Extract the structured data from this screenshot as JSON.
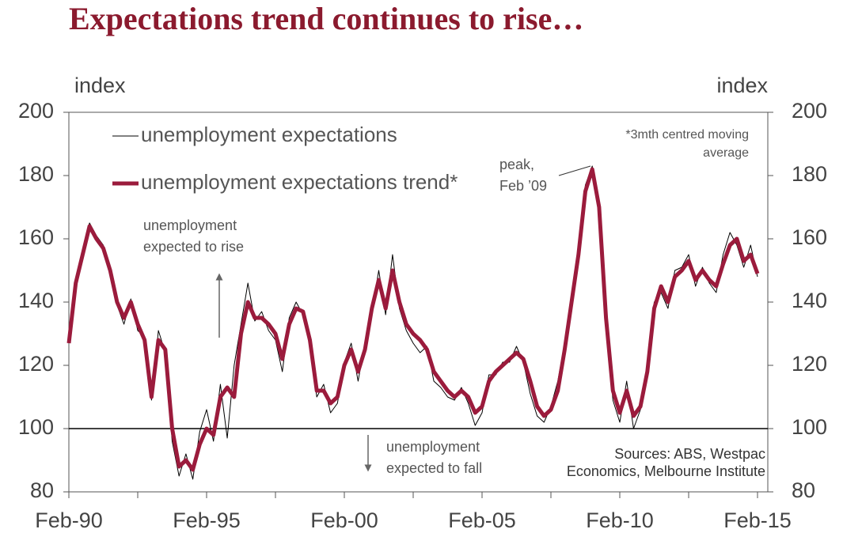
{
  "chart_data": {
    "type": "line",
    "title": "Expectations trend continues to rise…",
    "y_axis_label": "index",
    "y2_axis_label": "index",
    "categories": [
      "Feb-90",
      "May-90",
      "Aug-90",
      "Nov-90",
      "Feb-91",
      "May-91",
      "Aug-91",
      "Nov-91",
      "Feb-92",
      "May-92",
      "Aug-92",
      "Nov-92",
      "Feb-93",
      "May-93",
      "Aug-93",
      "Nov-93",
      "Feb-94",
      "May-94",
      "Aug-94",
      "Nov-94",
      "Feb-95",
      "May-95",
      "Aug-95",
      "Nov-95",
      "Feb-96",
      "May-96",
      "Aug-96",
      "Nov-96",
      "Feb-97",
      "May-97",
      "Aug-97",
      "Nov-97",
      "Feb-98",
      "May-98",
      "Aug-98",
      "Nov-98",
      "Feb-99",
      "May-99",
      "Aug-99",
      "Nov-99",
      "Feb-00",
      "May-00",
      "Aug-00",
      "Nov-00",
      "Feb-01",
      "May-01",
      "Aug-01",
      "Nov-01",
      "Feb-02",
      "May-02",
      "Aug-02",
      "Nov-02",
      "Feb-03",
      "May-03",
      "Aug-03",
      "Nov-03",
      "Feb-04",
      "May-04",
      "Aug-04",
      "Nov-04",
      "Feb-05",
      "May-05",
      "Aug-05",
      "Nov-05",
      "Feb-06",
      "May-06",
      "Aug-06",
      "Nov-06",
      "Feb-07",
      "May-07",
      "Aug-07",
      "Nov-07",
      "Feb-08",
      "May-08",
      "Aug-08",
      "Nov-08",
      "Feb-09",
      "May-09",
      "Aug-09",
      "Nov-09",
      "Feb-10",
      "May-10",
      "Aug-10",
      "Nov-10",
      "Feb-11",
      "May-11",
      "Aug-11",
      "Nov-11",
      "Feb-12",
      "May-12",
      "Aug-12",
      "Nov-12",
      "Feb-13",
      "May-13",
      "Aug-13",
      "Nov-13",
      "Feb-14",
      "May-14",
      "Aug-14",
      "Nov-14",
      "Feb-15"
    ],
    "series": [
      {
        "name": "unemployment expectations",
        "color": "#000000",
        "width": 1,
        "values": [
          127,
          147,
          156,
          165,
          161,
          158,
          151,
          139,
          133,
          141,
          131,
          129,
          109,
          131,
          124,
          96,
          85,
          92,
          84,
          99,
          106,
          96,
          114,
          97,
          120,
          133,
          146,
          134,
          137,
          131,
          128,
          118,
          135,
          140,
          136,
          126,
          110,
          114,
          105,
          108,
          121,
          127,
          115,
          127,
          137,
          150,
          136,
          155,
          138,
          131,
          127,
          124,
          126,
          115,
          113,
          110,
          109,
          113,
          108,
          101,
          105,
          117,
          117,
          121,
          121,
          126,
          121,
          111,
          104,
          102,
          107,
          115,
          127,
          137,
          155,
          177,
          183,
          167,
          133,
          109,
          102,
          115,
          100,
          106,
          120,
          140,
          143,
          138,
          150,
          151,
          155,
          145,
          151,
          146,
          143,
          155,
          162,
          158,
          151,
          158,
          148
        ]
      },
      {
        "name": "unemployment expectations trend*",
        "color": "#9b1b3c",
        "width": 5,
        "values": [
          127,
          146,
          155,
          164,
          160,
          157,
          150,
          140,
          135,
          140,
          133,
          128,
          110,
          128,
          125,
          100,
          88,
          90,
          87,
          95,
          100,
          98,
          110,
          113,
          110,
          130,
          140,
          135,
          135,
          133,
          130,
          122,
          133,
          138,
          137,
          128,
          112,
          112,
          108,
          110,
          120,
          125,
          118,
          125,
          138,
          147,
          138,
          150,
          140,
          133,
          130,
          128,
          125,
          118,
          115,
          112,
          110,
          112,
          110,
          105,
          107,
          115,
          118,
          120,
          122,
          124,
          122,
          115,
          107,
          104,
          106,
          112,
          125,
          140,
          155,
          175,
          182,
          170,
          135,
          112,
          105,
          112,
          104,
          107,
          118,
          138,
          145,
          140,
          148,
          150,
          153,
          147,
          150,
          147,
          145,
          152,
          158,
          160,
          153,
          155,
          149
        ]
      }
    ],
    "ylim": [
      80,
      200
    ],
    "yticks": [
      80,
      100,
      120,
      140,
      160,
      180,
      200
    ],
    "y2lim": [
      80,
      200
    ],
    "y2ticks": [
      80,
      100,
      120,
      140,
      160,
      180,
      200
    ],
    "xticks": [
      "Feb-90",
      "Feb-95",
      "Feb-00",
      "Feb-05",
      "Feb-10",
      "Feb-15"
    ],
    "reference_line": 100,
    "legend": "top-left",
    "annotations": {
      "rise": [
        "unemployment",
        "expected to rise"
      ],
      "fall": [
        "unemployment",
        "expected to fall"
      ],
      "peak": [
        "peak,",
        "Feb ’09"
      ],
      "note": [
        "*3mth centred moving",
        "average"
      ],
      "sources": [
        "Sources: ABS, Westpac",
        "Economics, Melbourne Institute"
      ]
    }
  }
}
